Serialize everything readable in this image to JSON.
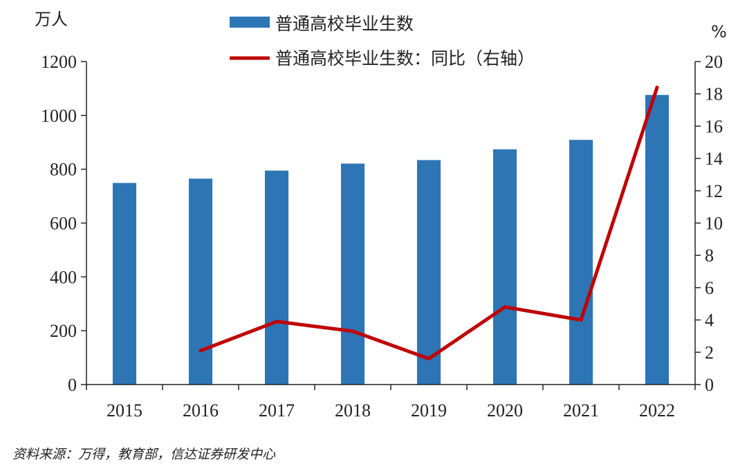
{
  "chart_data": {
    "type": "bar",
    "categories": [
      "2015",
      "2016",
      "2017",
      "2018",
      "2019",
      "2020",
      "2021",
      "2022"
    ],
    "series": [
      {
        "name": "普通高校毕业生数",
        "type": "bar",
        "axis": "left",
        "color": "#2e75b6",
        "values": [
          749,
          765,
          795,
          821,
          834,
          874,
          909,
          1076
        ]
      },
      {
        "name": "普通高校毕业生数：同比（右轴）",
        "type": "line",
        "axis": "right",
        "color": "#c00000",
        "values": [
          null,
          2.1,
          3.9,
          3.3,
          1.6,
          4.8,
          4.0,
          18.4
        ]
      }
    ],
    "left_axis": {
      "unit": "万人",
      "ylim": [
        0,
        1200
      ],
      "ticks": [
        0,
        200,
        400,
        600,
        800,
        1000,
        1200
      ]
    },
    "right_axis": {
      "unit": "%",
      "ylim": [
        0,
        20
      ],
      "ticks": [
        0,
        2,
        4,
        6,
        8,
        10,
        12,
        14,
        16,
        18,
        20
      ]
    },
    "legend_position": "top-center",
    "grid": false
  },
  "source_note": "资料来源：万得，教育部，信达证券研发中心"
}
